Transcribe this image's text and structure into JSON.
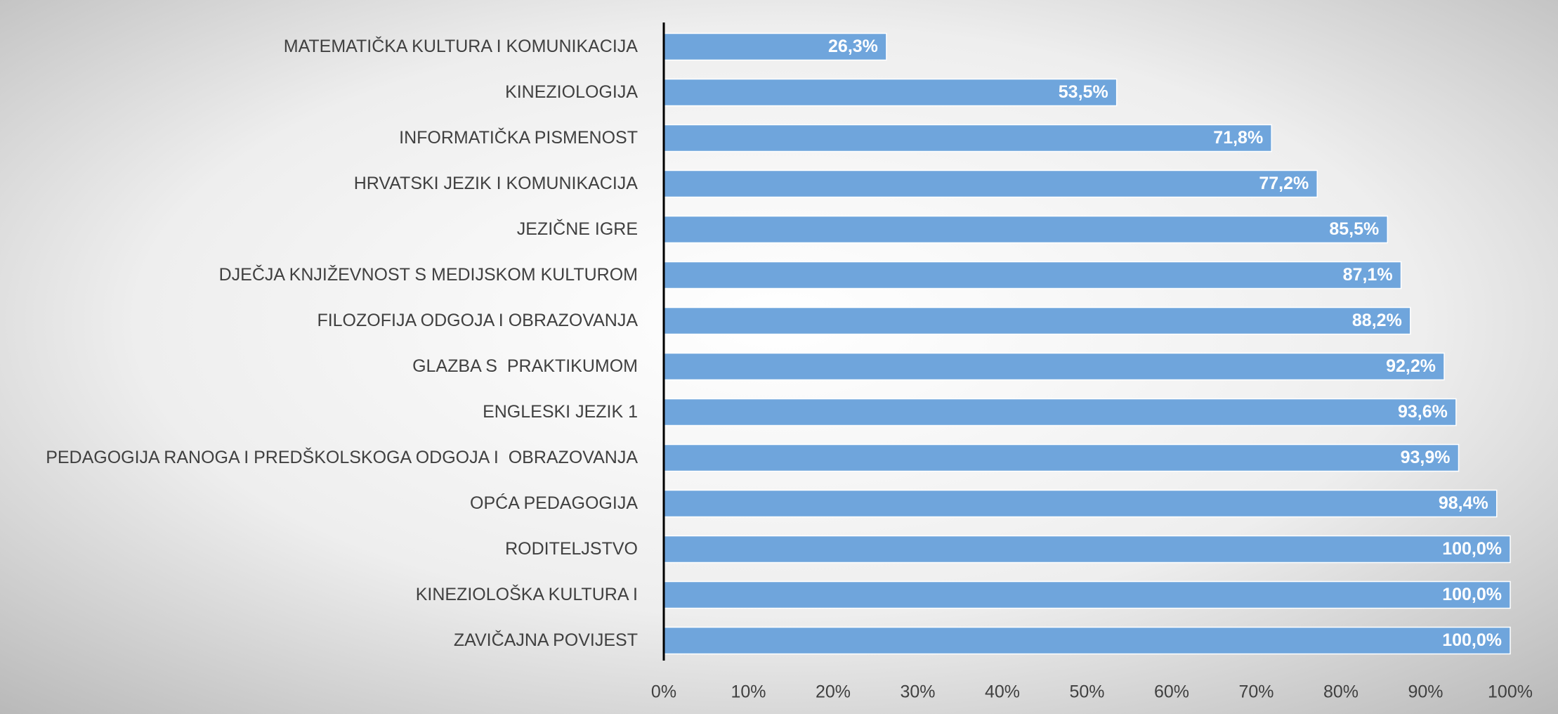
{
  "chart_data": {
    "type": "barh",
    "categories": [
      "MATEMATIČKA KULTURA I KOMUNIKACIJA",
      "KINEZIOLOGIJA",
      "INFORMATIČKA PISMENOST",
      "HRVATSKI JEZIK I KOMUNIKACIJA",
      "JEZIČNE IGRE",
      "DJEČJA KNJIŽEVNOST S MEDIJSKOM KULTUROM",
      "FILOZOFIJA ODGOJA I OBRAZOVANJA",
      "GLAZBA S  PRAKTIKUMOM",
      "ENGLESKI JEZIK 1",
      "PEDAGOGIJA RANOGA I PREDŠKOLSKOGA ODGOJA I  OBRAZOVANJA",
      "OPĆA PEDAGOGIJA",
      "RODITELJSTVO",
      "KINEZIOLOŠKA KULTURA I",
      "ZAVIČAJNA POVIJEST"
    ],
    "values": [
      26.3,
      53.5,
      71.8,
      77.2,
      85.5,
      87.1,
      88.2,
      92.2,
      93.6,
      93.9,
      98.4,
      100.0,
      100.0,
      100.0
    ],
    "value_labels": [
      "26,3%",
      "53,5%",
      "71,8%",
      "77,2%",
      "85,5%",
      "87,1%",
      "88,2%",
      "92,2%",
      "93,6%",
      "93,9%",
      "98,4%",
      "100,0%",
      "100,0%",
      "100,0%"
    ],
    "color": "#6fa5dc",
    "xlim": [
      0,
      100
    ],
    "xticks": [
      {
        "value": 0,
        "label": "0%"
      },
      {
        "value": 10,
        "label": "10%"
      },
      {
        "value": 20,
        "label": "20%"
      },
      {
        "value": 30,
        "label": "30%"
      },
      {
        "value": 40,
        "label": "40%"
      },
      {
        "value": 50,
        "label": "50%"
      },
      {
        "value": 60,
        "label": "60%"
      },
      {
        "value": 70,
        "label": "70%"
      },
      {
        "value": 80,
        "label": "80%"
      },
      {
        "value": 90,
        "label": "90%"
      },
      {
        "value": 100,
        "label": "100%"
      }
    ],
    "grid": false
  }
}
